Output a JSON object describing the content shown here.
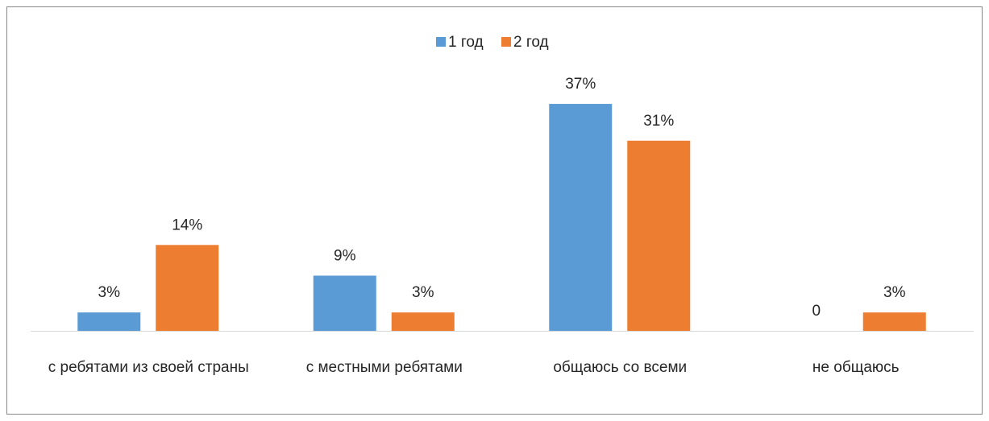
{
  "chart_data": {
    "type": "bar",
    "categories": [
      "с ребятами из своей страны",
      "с местными ребятами",
      "общаюсь со всеми",
      "не общаюсь"
    ],
    "series": [
      {
        "name": "1 год",
        "color": "#5b9bd5",
        "values": [
          3,
          9,
          37,
          0
        ],
        "value_labels": [
          "3%",
          "9%",
          "37%",
          "0"
        ]
      },
      {
        "name": "2 год",
        "color": "#ed7d31",
        "values": [
          14,
          3,
          31,
          3
        ],
        "value_labels": [
          "14%",
          "3%",
          "31%",
          "3%"
        ]
      }
    ],
    "legend": "top"
  }
}
